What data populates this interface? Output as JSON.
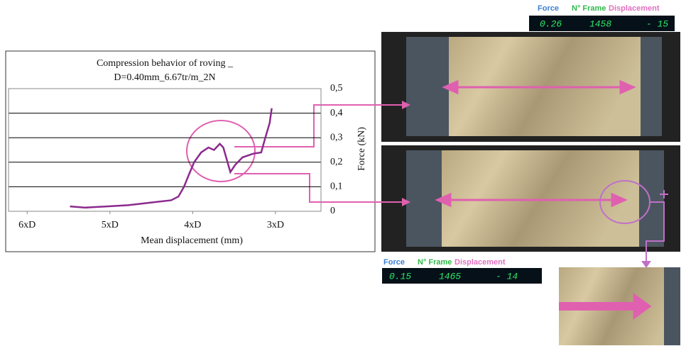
{
  "chart_data": {
    "type": "line",
    "title": "Compression behavior of roving _",
    "subtitle": "D=0.40mm_6.67tr/m_2N",
    "x_label": "Mean displacement (mm)",
    "y_label": "Force (kN)",
    "x": [
      2.193,
      2.118,
      2.014,
      1.911,
      1.807,
      1.704,
      1.669,
      1.642,
      1.618,
      1.593,
      1.559,
      1.524,
      1.497,
      1.469,
      1.452,
      1.418,
      1.394,
      1.359,
      1.307,
      1.269,
      1.249,
      1.228,
      1.218
    ],
    "series": [
      {
        "color": "#8b2a8e",
        "values": [
          0.02,
          0.015,
          0.02,
          0.025,
          0.035,
          0.045,
          0.06,
          0.1,
          0.15,
          0.2,
          0.24,
          0.26,
          0.25,
          0.275,
          0.26,
          0.16,
          0.19,
          0.22,
          0.235,
          0.24,
          0.3,
          0.36,
          0.42
        ]
      }
    ],
    "xlim": [
      2.49,
      0.98
    ],
    "xticks": [
      {
        "value": 2.4,
        "label": "6xD"
      },
      {
        "value": 2.0,
        "label": "5xD"
      },
      {
        "value": 1.6,
        "label": "4xD"
      },
      {
        "value": 1.2,
        "label": "3xD"
      }
    ],
    "ylim": [
      0,
      0.5
    ],
    "yticks": [
      0,
      {
        "value": 0.1,
        "label": "0,1"
      },
      {
        "value": 0.2,
        "label": "0,2"
      },
      {
        "value": 0.3,
        "label": "0,3"
      },
      {
        "value": 0.4,
        "label": "0,4"
      },
      {
        "value": 0.5,
        "label": "0,5"
      }
    ],
    "grid": true
  },
  "displays": {
    "top": {
      "labels": [
        "Force",
        "N° Frame",
        "Displacement"
      ],
      "values": [
        "0.26",
        "1458",
        "- 15"
      ]
    },
    "bottom": {
      "labels": [
        "Force",
        "N° Frame",
        "Displacement"
      ],
      "values": [
        "0.15",
        "1465",
        "- 14"
      ]
    }
  }
}
